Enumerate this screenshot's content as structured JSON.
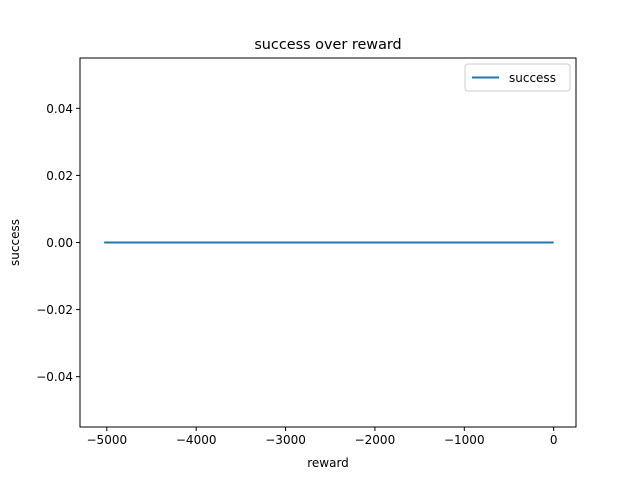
{
  "chart_data": {
    "type": "line",
    "title": "success over reward",
    "xlabel": "reward",
    "ylabel": "success",
    "xlim": [
      -5300,
      250
    ],
    "ylim": [
      -0.055,
      0.055
    ],
    "x_ticks": [
      -5000,
      -4000,
      -3000,
      -2000,
      -1000,
      0
    ],
    "x_tick_labels": [
      "−5000",
      "−4000",
      "−3000",
      "−2000",
      "−1000",
      "0"
    ],
    "y_ticks": [
      0.04,
      0.02,
      0.0,
      -0.02,
      -0.04
    ],
    "y_tick_labels": [
      "0.04",
      "0.02",
      "0.00",
      "−0.02",
      "−0.04"
    ],
    "grid": false,
    "legend_position": "top-right",
    "series": [
      {
        "name": "success",
        "color": "#1f77b4",
        "x": [
          -5030,
          -4000,
          -3000,
          -2000,
          -1000,
          0
        ],
        "y": [
          0,
          0,
          0,
          0,
          0,
          0
        ]
      }
    ]
  }
}
